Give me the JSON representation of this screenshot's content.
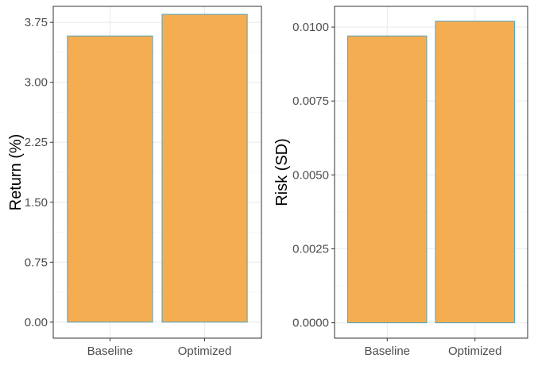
{
  "colors": {
    "bar_fill": "#F5AD52",
    "bar_outline": "#4BA3C3",
    "grid_major": "#EBEBEB",
    "grid_minor": "#F4F4F4",
    "panel_border": "#333333",
    "tick_text": "#4D4D4D",
    "title_text": "#000000",
    "background": "#FFFFFF"
  },
  "chart_data": [
    {
      "type": "bar",
      "title": "",
      "xlabel": "",
      "ylabel": "Return (%)",
      "categories": [
        "Baseline",
        "Optimized"
      ],
      "values": [
        3.58,
        3.85
      ],
      "ylim": [
        -0.2,
        3.95
      ],
      "y_ticks": [
        0,
        0.75,
        1.5,
        2.25,
        3.0,
        3.75
      ],
      "y_tick_labels": [
        "0.00",
        "0.75",
        "1.50",
        "2.25",
        "3.00",
        "3.75"
      ],
      "grid": true,
      "legend": "none"
    },
    {
      "type": "bar",
      "title": "",
      "xlabel": "",
      "ylabel": "Risk (SD)",
      "categories": [
        "Baseline",
        "Optimized"
      ],
      "values": [
        0.0097,
        0.0102
      ],
      "ylim": [
        -0.00052,
        0.0107
      ],
      "y_ticks": [
        0,
        0.0025,
        0.005,
        0.0075,
        0.01
      ],
      "y_tick_labels": [
        "0.0000",
        "0.0025",
        "0.0050",
        "0.0075",
        "0.0100"
      ],
      "grid": true,
      "legend": "none"
    }
  ]
}
